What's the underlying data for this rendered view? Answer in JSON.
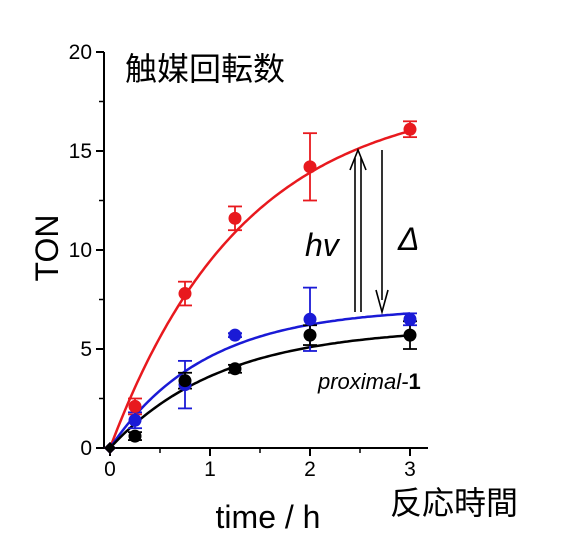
{
  "chart_data": {
    "type": "scatter",
    "title": "触媒回転数",
    "xlabel": "time / h",
    "xlabel_jp": "反応時間",
    "ylabel": "TON",
    "xlim": [
      -0.05,
      3.15
    ],
    "ylim": [
      0,
      20
    ],
    "x_ticks": [
      "0",
      "1",
      "2",
      "3"
    ],
    "y_ticks": [
      "0",
      "5",
      "10",
      "15",
      "20"
    ],
    "series": [
      {
        "color": "#e8191e",
        "x": [
          0,
          0.25,
          0.75,
          1.25,
          2,
          3
        ],
        "y": [
          0,
          2.1,
          7.8,
          11.6,
          14.2,
          16.1
        ],
        "err": [
          0,
          0.4,
          0.6,
          0.6,
          1.7,
          0.4
        ],
        "fit": {
          "a": 17.9,
          "k": 0.75
        }
      },
      {
        "color": "#1a1ad6",
        "x": [
          0,
          0.25,
          0.75,
          1.25,
          2,
          3
        ],
        "y": [
          0,
          1.4,
          3.2,
          5.7,
          6.5,
          6.5
        ],
        "err": [
          0,
          0.4,
          1.2,
          0.1,
          1.6,
          0.3
        ],
        "fit": {
          "a": 7.1,
          "k": 1.05
        }
      },
      {
        "color": "#000000",
        "x": [
          0,
          0.25,
          0.75,
          1.25,
          2,
          3
        ],
        "y": [
          0,
          0.6,
          3.4,
          4.0,
          5.7,
          5.7
        ],
        "err": [
          0,
          0.2,
          0.4,
          0.2,
          0.5,
          0.7
        ],
        "fit": {
          "a": 6.1,
          "k": 0.9
        }
      }
    ],
    "annotations": {
      "hv": "hv",
      "delta": "Δ",
      "compound_prefix": "proximal-",
      "compound_number": "1"
    }
  }
}
